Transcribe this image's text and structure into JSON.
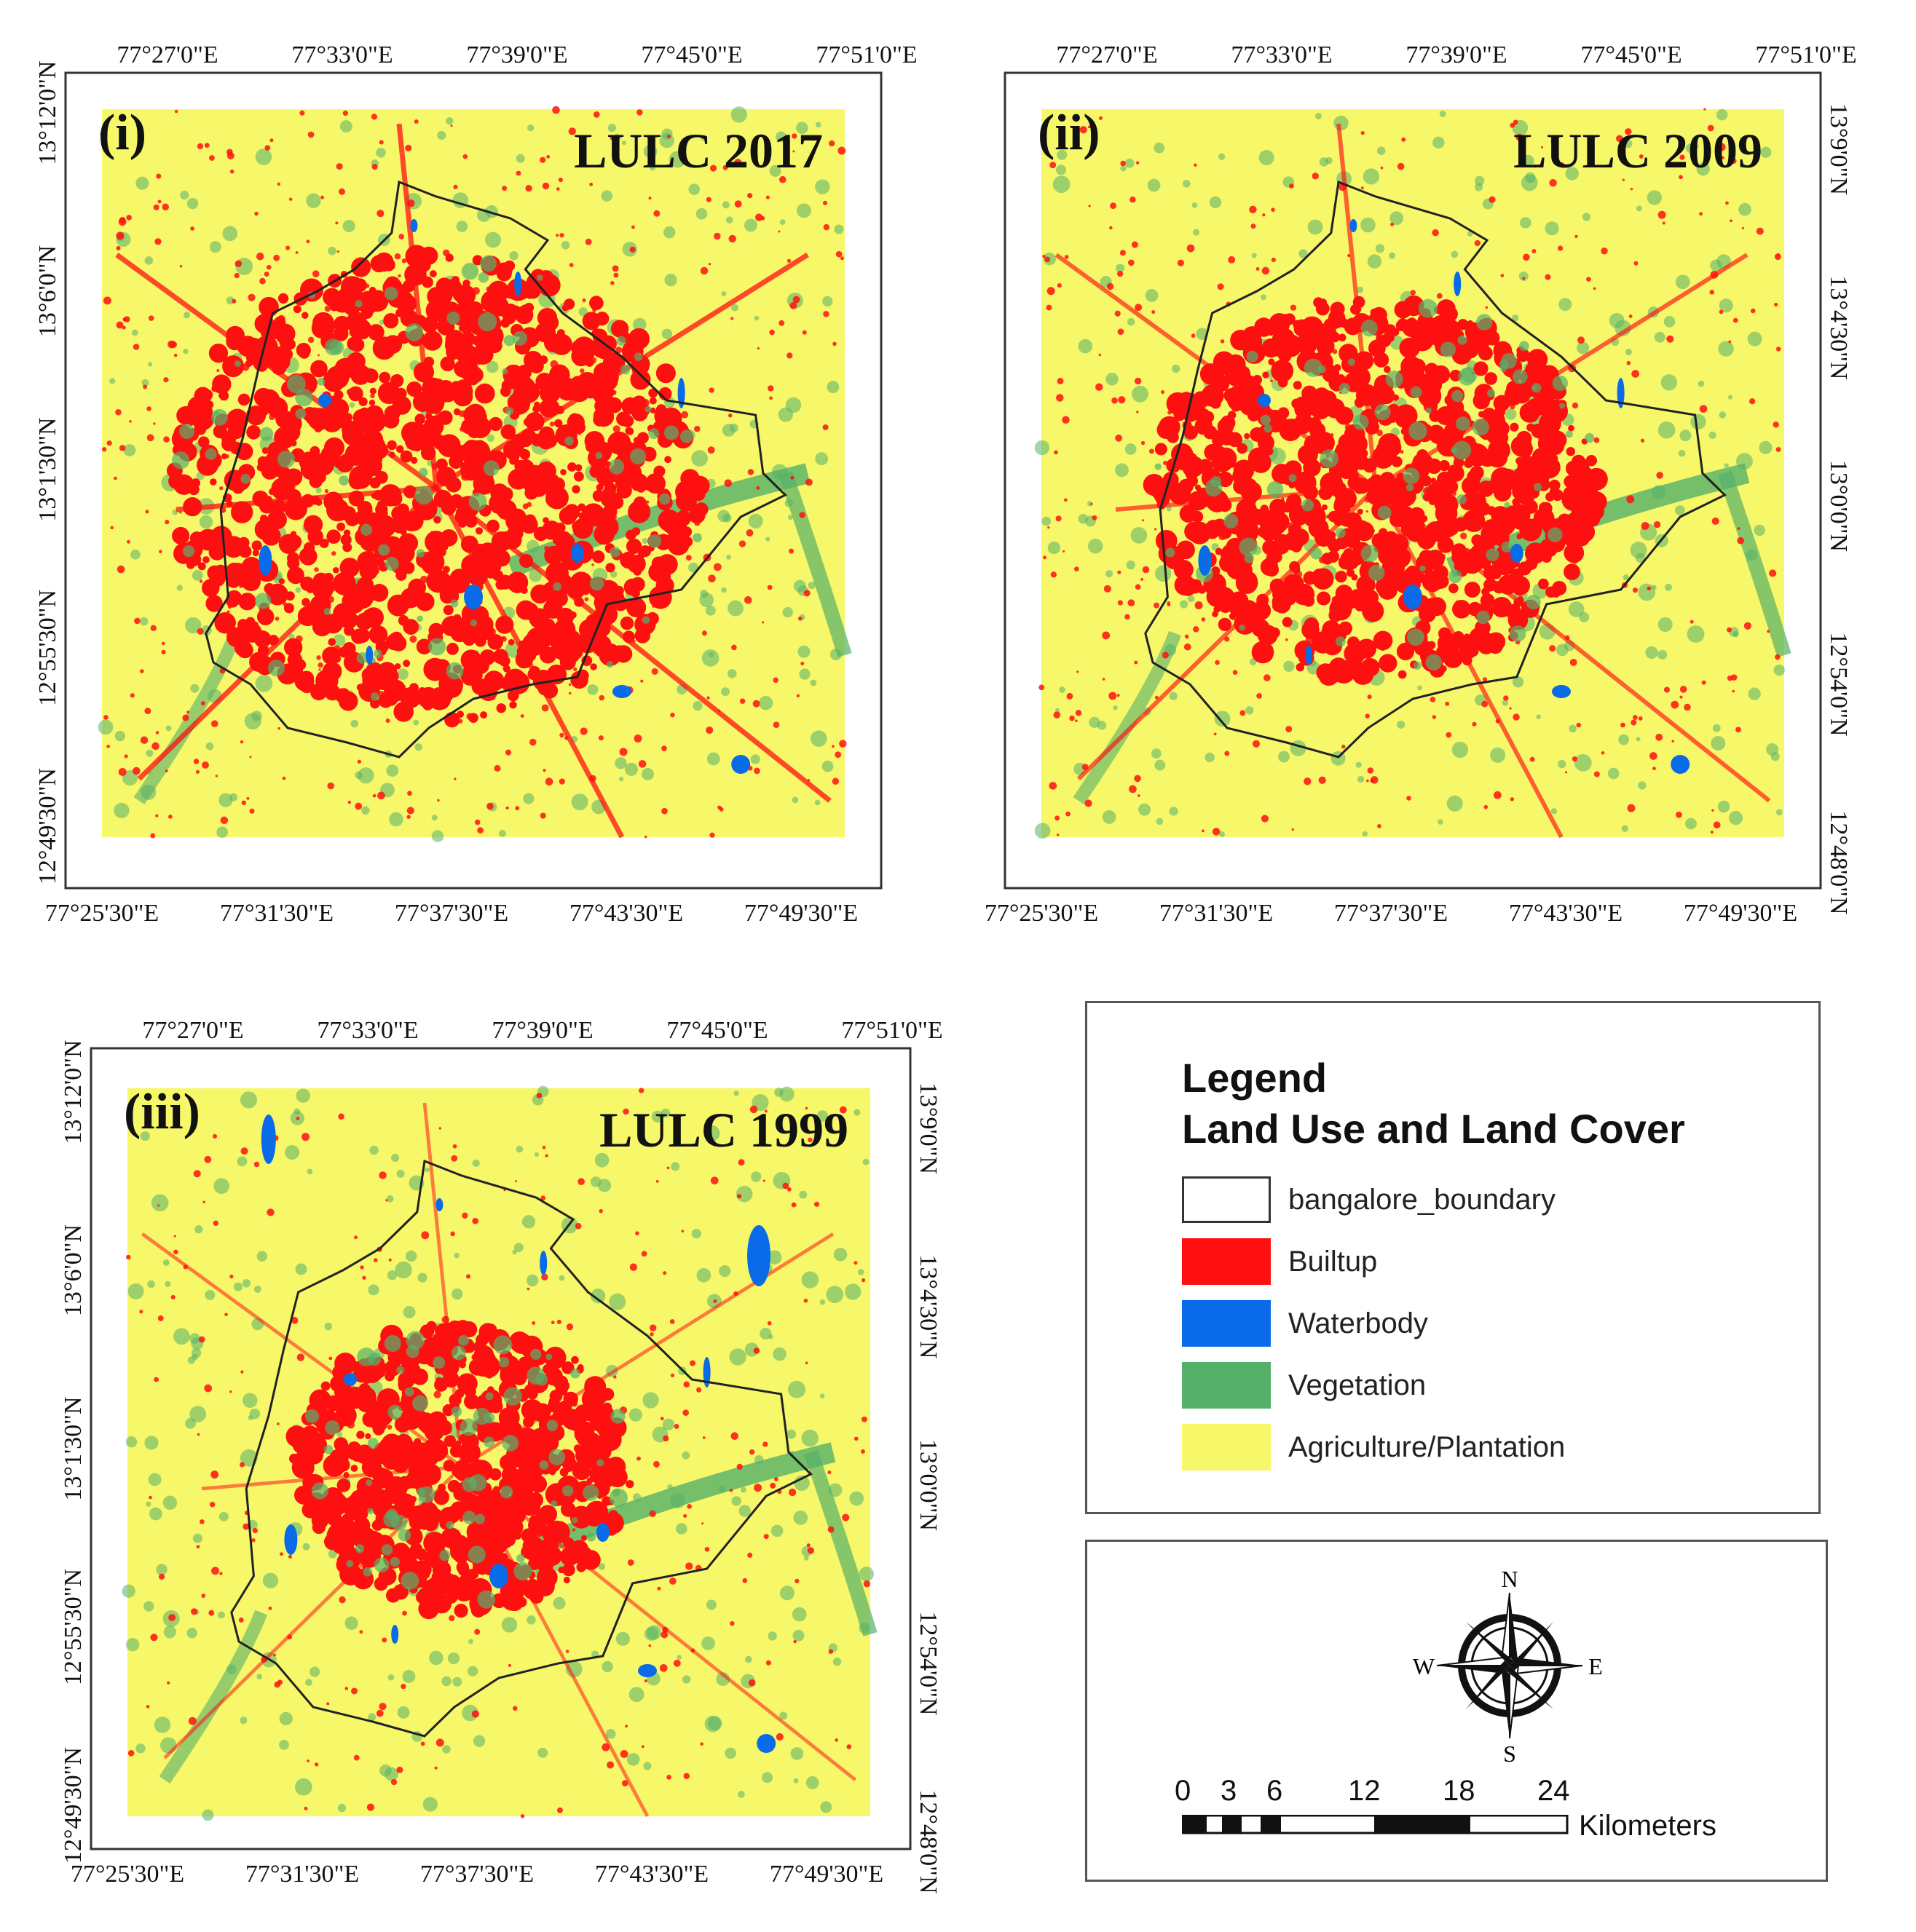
{
  "panels": [
    {
      "label": "(i)",
      "title": "LULC 2017",
      "top_ticks": [
        "77°27'0\"E",
        "77°33'0\"E",
        "77°39'0\"E",
        "77°45'0\"E",
        "77°51'0\"E"
      ],
      "bottom_ticks": [
        "77°25'30\"E",
        "77°31'30\"E",
        "77°37'30\"E",
        "77°43'30\"E",
        "77°49'30\"E"
      ],
      "left_ticks": [
        "13°12'0\"N",
        "13°6'0\"N",
        "13°1'30\"N",
        "12°55'30\"N",
        "12°49'30\"N"
      ],
      "right_ticks": [],
      "builtup_level": 1.0
    },
    {
      "label": "(ii)",
      "title": "LULC 2009",
      "top_ticks": [
        "77°27'0\"E",
        "77°33'0\"E",
        "77°39'0\"E",
        "77°45'0\"E",
        "77°51'0\"E"
      ],
      "bottom_ticks": [
        "77°25'30\"E",
        "77°31'30\"E",
        "77°37'30\"E",
        "77°43'30\"E",
        "77°49'30\"E"
      ],
      "left_ticks": [],
      "right_ticks": [
        "13°9'0\"N",
        "13°4'30\"N",
        "13°0'0\"N",
        "12°54'0\"N",
        "12°48'0\"N"
      ],
      "builtup_level": 0.75
    },
    {
      "label": "(iii)",
      "title": "LULC 1999",
      "top_ticks": [
        "77°27'0\"E",
        "77°33'0\"E",
        "77°39'0\"E",
        "77°45'0\"E",
        "77°51'0\"E"
      ],
      "bottom_ticks": [
        "77°25'30\"E",
        "77°31'30\"E",
        "77°37'30\"E",
        "77°43'30\"E",
        "77°49'30\"E"
      ],
      "left_ticks": [
        "13°12'0\"N",
        "13°6'0\"N",
        "13°1'30\"N",
        "12°55'30\"N",
        "12°49'30\"N"
      ],
      "right_ticks": [
        "13°9'0\"N",
        "13°4'30\"N",
        "13°0'0\"N",
        "12°54'0\"N",
        "12°48'0\"N"
      ],
      "builtup_level": 0.45
    }
  ],
  "legend": {
    "heading": "Legend",
    "subheading": "Land Use and Land Cover",
    "items": [
      {
        "label": "bangalore_boundary",
        "color": "#ffffff"
      },
      {
        "label": "Builtup",
        "color": "#ff1010"
      },
      {
        "label": "Waterbody",
        "color": "#0a6be8"
      },
      {
        "label": "Vegetation",
        "color": "#55b06a"
      },
      {
        "label": "Agriculture/Plantation",
        "color": "#f7f76a"
      }
    ]
  },
  "compass": {
    "n": "N",
    "s": "S",
    "e": "E",
    "w": "W"
  },
  "scale_bar": {
    "labels": [
      "0",
      "3",
      "6",
      "12",
      "18",
      "24"
    ],
    "unit": "Kilometers"
  },
  "colors": {
    "builtup": "#ff1010",
    "water": "#0a6be8",
    "vegetation": "#55b06a",
    "agriculture": "#f7f76a",
    "boundary": "#222222"
  }
}
